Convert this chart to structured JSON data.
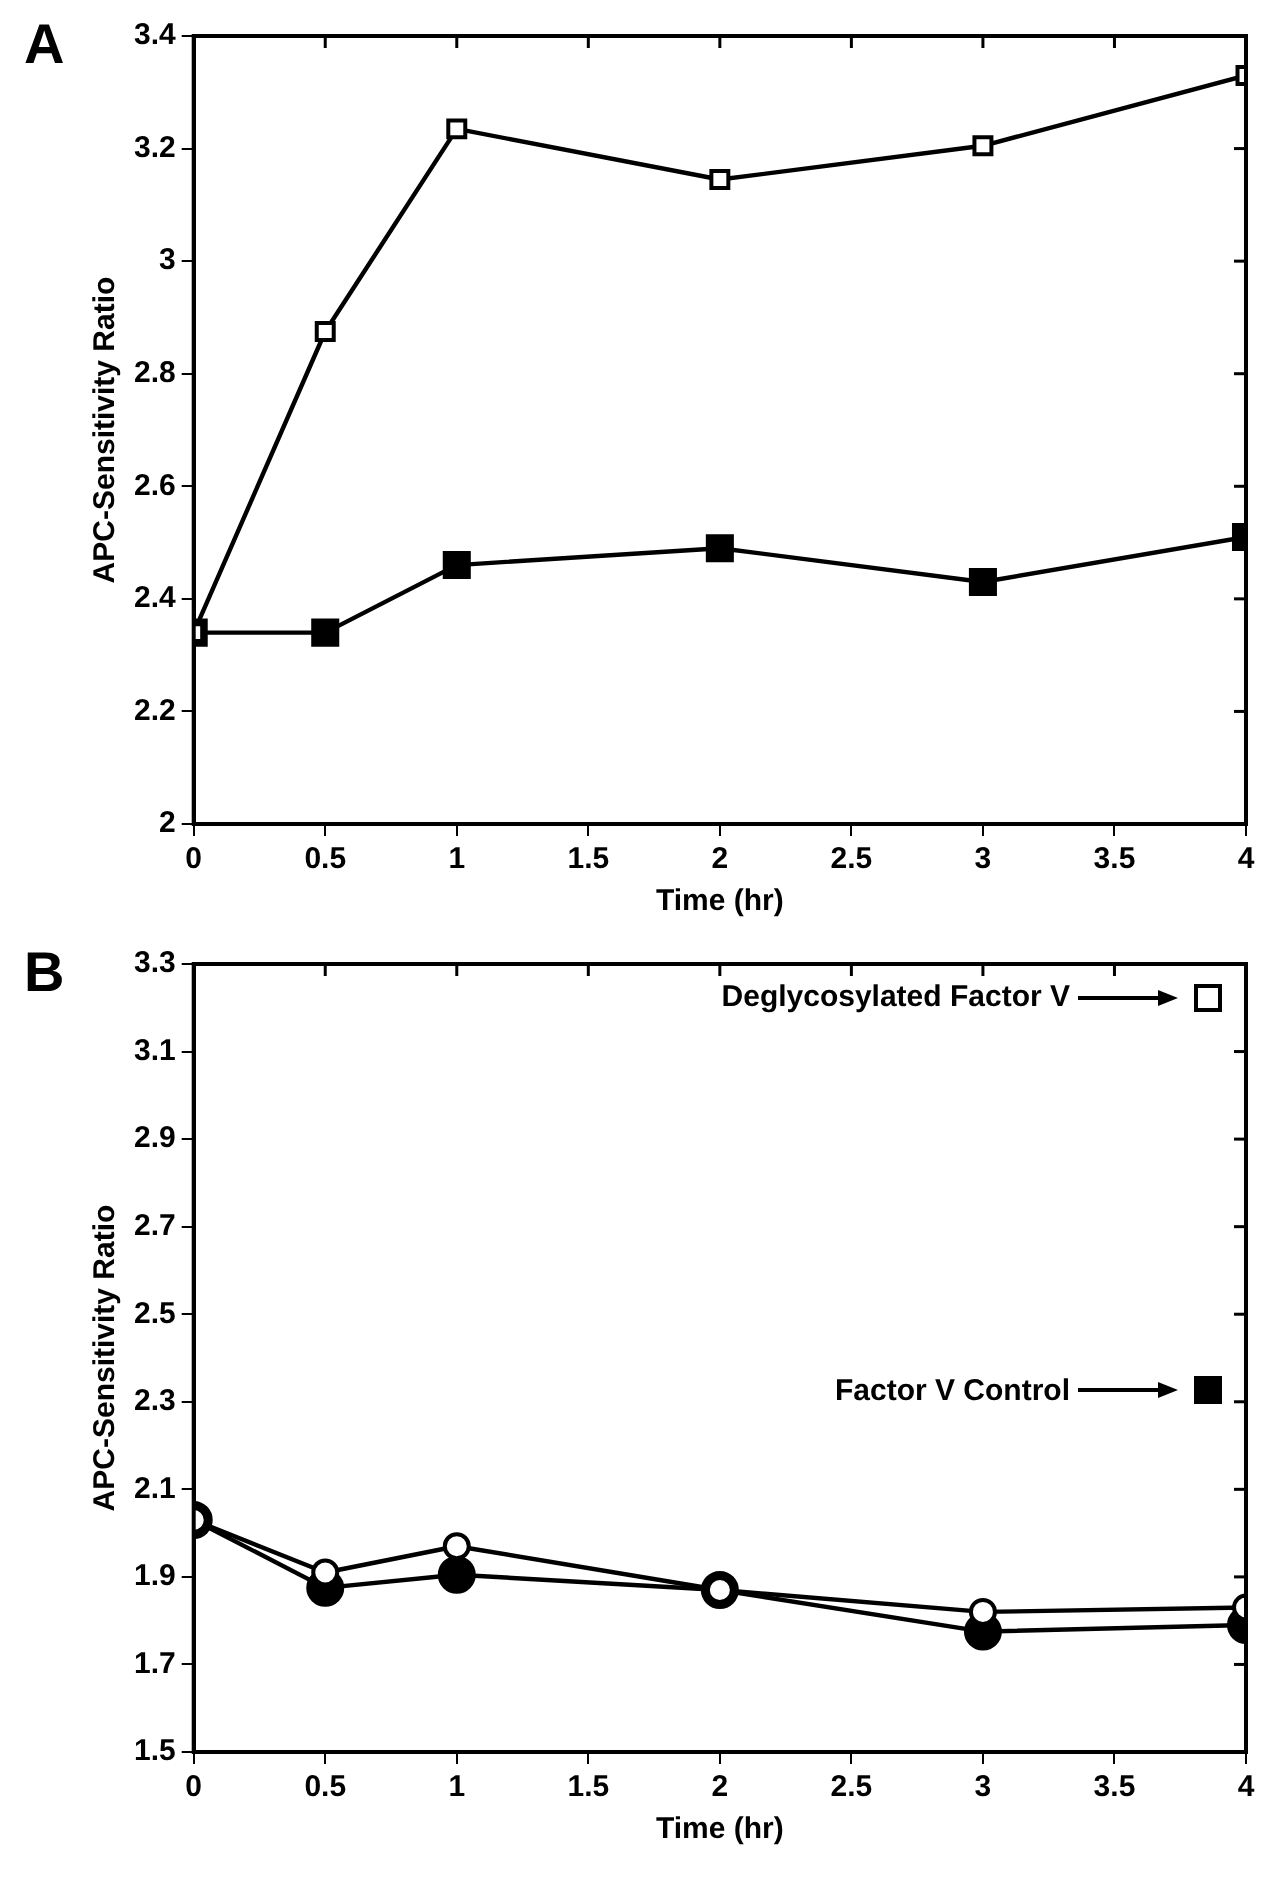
{
  "chart_data": [
    {
      "type": "line",
      "title": "A",
      "xlabel": "Time (hr)",
      "ylabel": "APC-Sensitivity Ratio",
      "x": [
        0,
        0.5,
        1,
        2,
        3,
        4
      ],
      "series": [
        {
          "color": "#ffffff",
          "marker": "square",
          "values": [
            2.34,
            2.875,
            3.235,
            3.145,
            3.205,
            3.33
          ]
        },
        {
          "color": "#000000",
          "marker": "square",
          "values": [
            2.34,
            2.34,
            2.46,
            2.49,
            2.43,
            2.51
          ]
        }
      ],
      "xlim": [
        0,
        4
      ],
      "xticks": [
        0,
        0.5,
        1,
        1.5,
        2,
        2.5,
        3,
        3.5,
        4
      ],
      "ylim": [
        2,
        3.4
      ],
      "yticks": [
        2,
        2.2,
        2.4,
        2.6,
        2.8,
        3,
        3.2,
        3.4
      ],
      "grid": false,
      "legend": false
    },
    {
      "type": "line",
      "title": "B",
      "xlabel": "Time (hr)",
      "ylabel": "APC-Sensitivity Ratio",
      "x": [
        0,
        0.5,
        1,
        2,
        3,
        4
      ],
      "series": [
        {
          "color": "#ffffff",
          "marker": "circle",
          "values": [
            2.03,
            1.91,
            1.97,
            1.87,
            1.82,
            1.83
          ]
        },
        {
          "color": "#000000",
          "marker": "circle",
          "values": [
            2.03,
            1.875,
            1.905,
            1.87,
            1.775,
            1.79
          ]
        }
      ],
      "annotations": [
        "Deglycosylated Factor V",
        "Factor V Control"
      ],
      "xlim": [
        0,
        4
      ],
      "xticks": [
        0,
        0.5,
        1,
        1.5,
        2,
        2.5,
        3,
        3.5,
        4
      ],
      "ylim": [
        1.5,
        3.3
      ],
      "yticks": [
        1.5,
        1.7,
        1.9,
        2.1,
        2.3,
        2.5,
        2.7,
        2.9,
        3.1,
        3.3
      ],
      "grid": false,
      "legend": false
    }
  ]
}
